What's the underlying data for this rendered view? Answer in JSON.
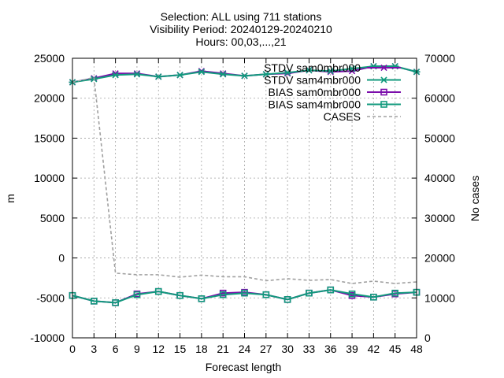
{
  "chart_data": {
    "type": "line",
    "title_lines": [
      "Selection: ALL using   711 stations",
      "Visibility   Period: 20240129-20240210",
      "Hours: 00,03,...,21"
    ],
    "xlabel": "Forecast length",
    "ylabel": "m",
    "y2label": "No cases",
    "x": [
      0,
      3,
      6,
      9,
      12,
      15,
      18,
      21,
      24,
      27,
      30,
      33,
      36,
      39,
      42,
      45,
      48
    ],
    "xlim": [
      0,
      48
    ],
    "ylim": [
      -10000,
      25000
    ],
    "y2lim": [
      0,
      70000
    ],
    "xticks": [
      0,
      3,
      6,
      9,
      12,
      15,
      18,
      21,
      24,
      27,
      30,
      33,
      36,
      39,
      42,
      45,
      48
    ],
    "yticks": [
      -10000,
      -5000,
      0,
      5000,
      10000,
      15000,
      20000,
      25000
    ],
    "y2ticks": [
      0,
      10000,
      20000,
      30000,
      40000,
      50000,
      60000,
      70000
    ],
    "grid": true,
    "legend_position": "top-right",
    "series": [
      {
        "name": "STDV sam0mbr000",
        "axis": "y1",
        "color": "#7b0dab",
        "marker": "star",
        "dash": false,
        "values": [
          22000,
          22500,
          23100,
          23100,
          22700,
          22900,
          23400,
          23100,
          22800,
          23000,
          23100,
          23500,
          23300,
          23400,
          24000,
          24000,
          23300
        ]
      },
      {
        "name": "STDV sam4mbr000",
        "axis": "y1",
        "color": "#129a7d",
        "marker": "star",
        "dash": false,
        "values": [
          22000,
          22400,
          22900,
          23000,
          22700,
          22900,
          23300,
          23000,
          22800,
          23000,
          23200,
          23500,
          23400,
          23700,
          24000,
          24000,
          23300
        ]
      },
      {
        "name": "BIAS sam0mbr000",
        "axis": "y1",
        "color": "#7b0dab",
        "marker": "square",
        "dash": false,
        "values": [
          -4700,
          -5400,
          -5600,
          -4500,
          -4200,
          -4700,
          -5100,
          -4400,
          -4300,
          -4600,
          -5200,
          -4400,
          -4000,
          -4700,
          -4900,
          -4500,
          -4300
        ]
      },
      {
        "name": "BIAS sam4mbr000",
        "axis": "y1",
        "color": "#129a7d",
        "marker": "square",
        "dash": false,
        "values": [
          -4700,
          -5400,
          -5600,
          -4600,
          -4200,
          -4700,
          -5100,
          -4600,
          -4400,
          -4600,
          -5200,
          -4400,
          -4000,
          -4500,
          -4900,
          -4400,
          -4300
        ]
      },
      {
        "name": "CASES",
        "axis": "y2",
        "color": "#a0a0a0",
        "marker": "none",
        "dash": true,
        "values": [
          64000,
          65200,
          16200,
          15800,
          15800,
          15200,
          15700,
          15300,
          15300,
          14300,
          14800,
          14400,
          14600,
          13600,
          14200,
          13600,
          14000
        ]
      }
    ]
  }
}
